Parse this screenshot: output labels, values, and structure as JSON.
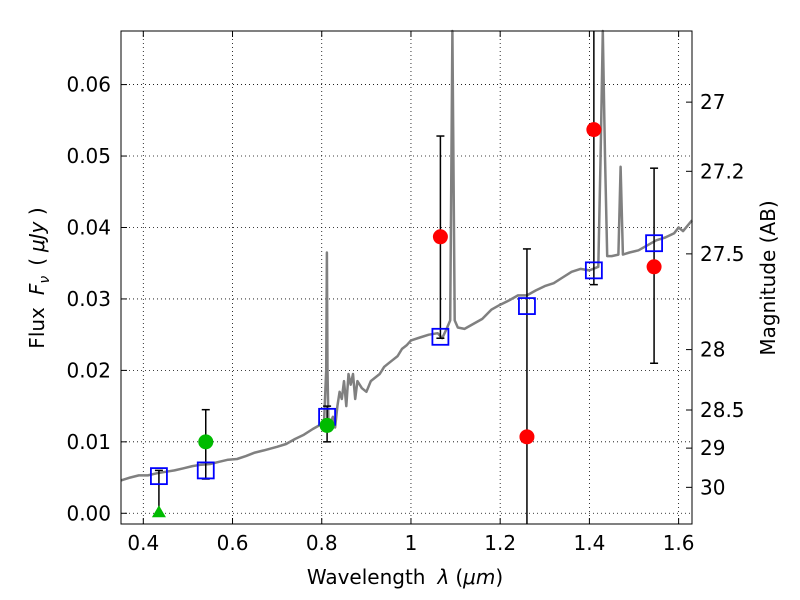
{
  "chart_data": {
    "type": "scatter",
    "xlabel": "Wavelength",
    "xlabel_symbol": "λ",
    "xlabel_unit": "μm",
    "ylabel": "Flux",
    "ylabel_symbol": "F",
    "ylabel_subscript": "ν",
    "ylabel_unit": "μJy",
    "y2label": "Magnitude (AB)",
    "xlim": [
      0.35,
      1.63
    ],
    "ylim": [
      -0.0015,
      0.0675
    ],
    "grid": true,
    "grid_style": "dotted",
    "x_ticks": [
      {
        "value": 0.4,
        "label": "0.4"
      },
      {
        "value": 0.6,
        "label": "0.6"
      },
      {
        "value": 0.8,
        "label": "0.8"
      },
      {
        "value": 1.0,
        "label": "1"
      },
      {
        "value": 1.2,
        "label": "1.2"
      },
      {
        "value": 1.4,
        "label": "1.4"
      },
      {
        "value": 1.6,
        "label": "1.6"
      }
    ],
    "y_ticks": [
      {
        "value": 0.0,
        "label": "0.00"
      },
      {
        "value": 0.01,
        "label": "0.01"
      },
      {
        "value": 0.02,
        "label": "0.02"
      },
      {
        "value": 0.03,
        "label": "0.03"
      },
      {
        "value": 0.04,
        "label": "0.04"
      },
      {
        "value": 0.05,
        "label": "0.05"
      },
      {
        "value": 0.06,
        "label": "0.06"
      }
    ],
    "y2_ticks": [
      {
        "value": 27.0,
        "label": "27"
      },
      {
        "value": 27.2,
        "label": "27.2"
      },
      {
        "value": 27.5,
        "label": "27.5"
      },
      {
        "value": 28.0,
        "label": "28"
      },
      {
        "value": 28.5,
        "label": "28.5"
      },
      {
        "value": 29.0,
        "label": "29"
      },
      {
        "value": 30.0,
        "label": "30"
      }
    ],
    "model_spectrum": {
      "color": "#808080",
      "points": [
        [
          0.35,
          0.0046
        ],
        [
          0.37,
          0.005
        ],
        [
          0.39,
          0.0053
        ],
        [
          0.41,
          0.0053
        ],
        [
          0.43,
          0.0056
        ],
        [
          0.45,
          0.0058
        ],
        [
          0.47,
          0.006
        ],
        [
          0.49,
          0.0063
        ],
        [
          0.51,
          0.0066
        ],
        [
          0.53,
          0.0068
        ],
        [
          0.55,
          0.0069
        ],
        [
          0.57,
          0.0072
        ],
        [
          0.59,
          0.0075
        ],
        [
          0.61,
          0.0076
        ],
        [
          0.63,
          0.008
        ],
        [
          0.65,
          0.0085
        ],
        [
          0.67,
          0.0088
        ],
        [
          0.7,
          0.0093
        ],
        [
          0.72,
          0.0097
        ],
        [
          0.74,
          0.0104
        ],
        [
          0.76,
          0.011
        ],
        [
          0.78,
          0.0118
        ],
        [
          0.8,
          0.0125
        ],
        [
          0.805,
          0.0126
        ],
        [
          0.81,
          0.02
        ],
        [
          0.8115,
          0.0365
        ],
        [
          0.813,
          0.02
        ],
        [
          0.815,
          0.013
        ],
        [
          0.82,
          0.0128
        ],
        [
          0.825,
          0.0135
        ],
        [
          0.83,
          0.012
        ],
        [
          0.835,
          0.015
        ],
        [
          0.84,
          0.017
        ],
        [
          0.845,
          0.016
        ],
        [
          0.85,
          0.0185
        ],
        [
          0.855,
          0.015
        ],
        [
          0.86,
          0.0195
        ],
        [
          0.865,
          0.018
        ],
        [
          0.87,
          0.0195
        ],
        [
          0.875,
          0.016
        ],
        [
          0.88,
          0.0185
        ],
        [
          0.89,
          0.0175
        ],
        [
          0.9,
          0.017
        ],
        [
          0.91,
          0.0185
        ],
        [
          0.92,
          0.019
        ],
        [
          0.93,
          0.0195
        ],
        [
          0.94,
          0.0205
        ],
        [
          0.95,
          0.021
        ],
        [
          0.96,
          0.0215
        ],
        [
          0.97,
          0.022
        ],
        [
          0.98,
          0.023
        ],
        [
          0.99,
          0.0235
        ],
        [
          1.0,
          0.0242
        ],
        [
          1.02,
          0.0246
        ],
        [
          1.04,
          0.025
        ],
        [
          1.06,
          0.0252
        ],
        [
          1.07,
          0.0245
        ],
        [
          1.08,
          0.0258
        ],
        [
          1.088,
          0.027
        ],
        [
          1.093,
          0.068
        ],
        [
          1.098,
          0.027
        ],
        [
          1.105,
          0.026
        ],
        [
          1.12,
          0.0258
        ],
        [
          1.14,
          0.0265
        ],
        [
          1.16,
          0.0272
        ],
        [
          1.18,
          0.0285
        ],
        [
          1.2,
          0.0292
        ],
        [
          1.22,
          0.0298
        ],
        [
          1.24,
          0.0305
        ],
        [
          1.26,
          0.0305
        ],
        [
          1.28,
          0.0312
        ],
        [
          1.3,
          0.0318
        ],
        [
          1.32,
          0.0322
        ],
        [
          1.34,
          0.033
        ],
        [
          1.36,
          0.0338
        ],
        [
          1.38,
          0.0342
        ],
        [
          1.4,
          0.034
        ],
        [
          1.42,
          0.0345
        ],
        [
          1.425,
          0.05
        ],
        [
          1.43,
          0.068
        ],
        [
          1.435,
          0.05
        ],
        [
          1.44,
          0.036
        ],
        [
          1.45,
          0.036
        ],
        [
          1.465,
          0.0362
        ],
        [
          1.47,
          0.0485
        ],
        [
          1.475,
          0.0362
        ],
        [
          1.49,
          0.0365
        ],
        [
          1.51,
          0.0368
        ],
        [
          1.53,
          0.0375
        ],
        [
          1.55,
          0.0382
        ],
        [
          1.57,
          0.0386
        ],
        [
          1.59,
          0.0392
        ],
        [
          1.6,
          0.04
        ],
        [
          1.61,
          0.0395
        ],
        [
          1.63,
          0.041
        ]
      ]
    },
    "model_photometry": {
      "marker": "open-square",
      "color": "#0000ff",
      "points": [
        {
          "x": 0.435,
          "y": 0.0052
        },
        {
          "x": 0.54,
          "y": 0.006
        },
        {
          "x": 0.812,
          "y": 0.0135
        },
        {
          "x": 1.066,
          "y": 0.0247
        },
        {
          "x": 1.26,
          "y": 0.029
        },
        {
          "x": 1.41,
          "y": 0.034
        },
        {
          "x": 1.545,
          "y": 0.0378
        }
      ]
    },
    "detections": [
      {
        "x": 0.54,
        "y": 0.01,
        "yerr_low": 0.0048,
        "yerr_high": 0.0145,
        "color": "#00bb00",
        "marker": "circle"
      },
      {
        "x": 0.812,
        "y": 0.0123,
        "yerr_low": 0.01,
        "yerr_high": 0.015,
        "color": "#00bb00",
        "marker": "circle"
      },
      {
        "x": 1.066,
        "y": 0.0387,
        "yerr_low": 0.0245,
        "yerr_high": 0.0528,
        "color": "#ff0000",
        "marker": "circle"
      },
      {
        "x": 1.26,
        "y": 0.0107,
        "yerr_low": -0.0015,
        "yerr_high": 0.037,
        "color": "#ff0000",
        "marker": "circle"
      },
      {
        "x": 1.41,
        "y": 0.0537,
        "yerr_low": 0.032,
        "yerr_high": 0.0675,
        "color": "#ff0000",
        "marker": "circle"
      },
      {
        "x": 1.545,
        "y": 0.0345,
        "yerr_low": 0.021,
        "yerr_high": 0.0483,
        "color": "#ff0000",
        "marker": "circle"
      }
    ],
    "upper_limits": [
      {
        "x": 0.435,
        "y": 0.0,
        "yerr_high": 0.006,
        "color": "#00bb00",
        "marker": "triangle"
      }
    ]
  }
}
